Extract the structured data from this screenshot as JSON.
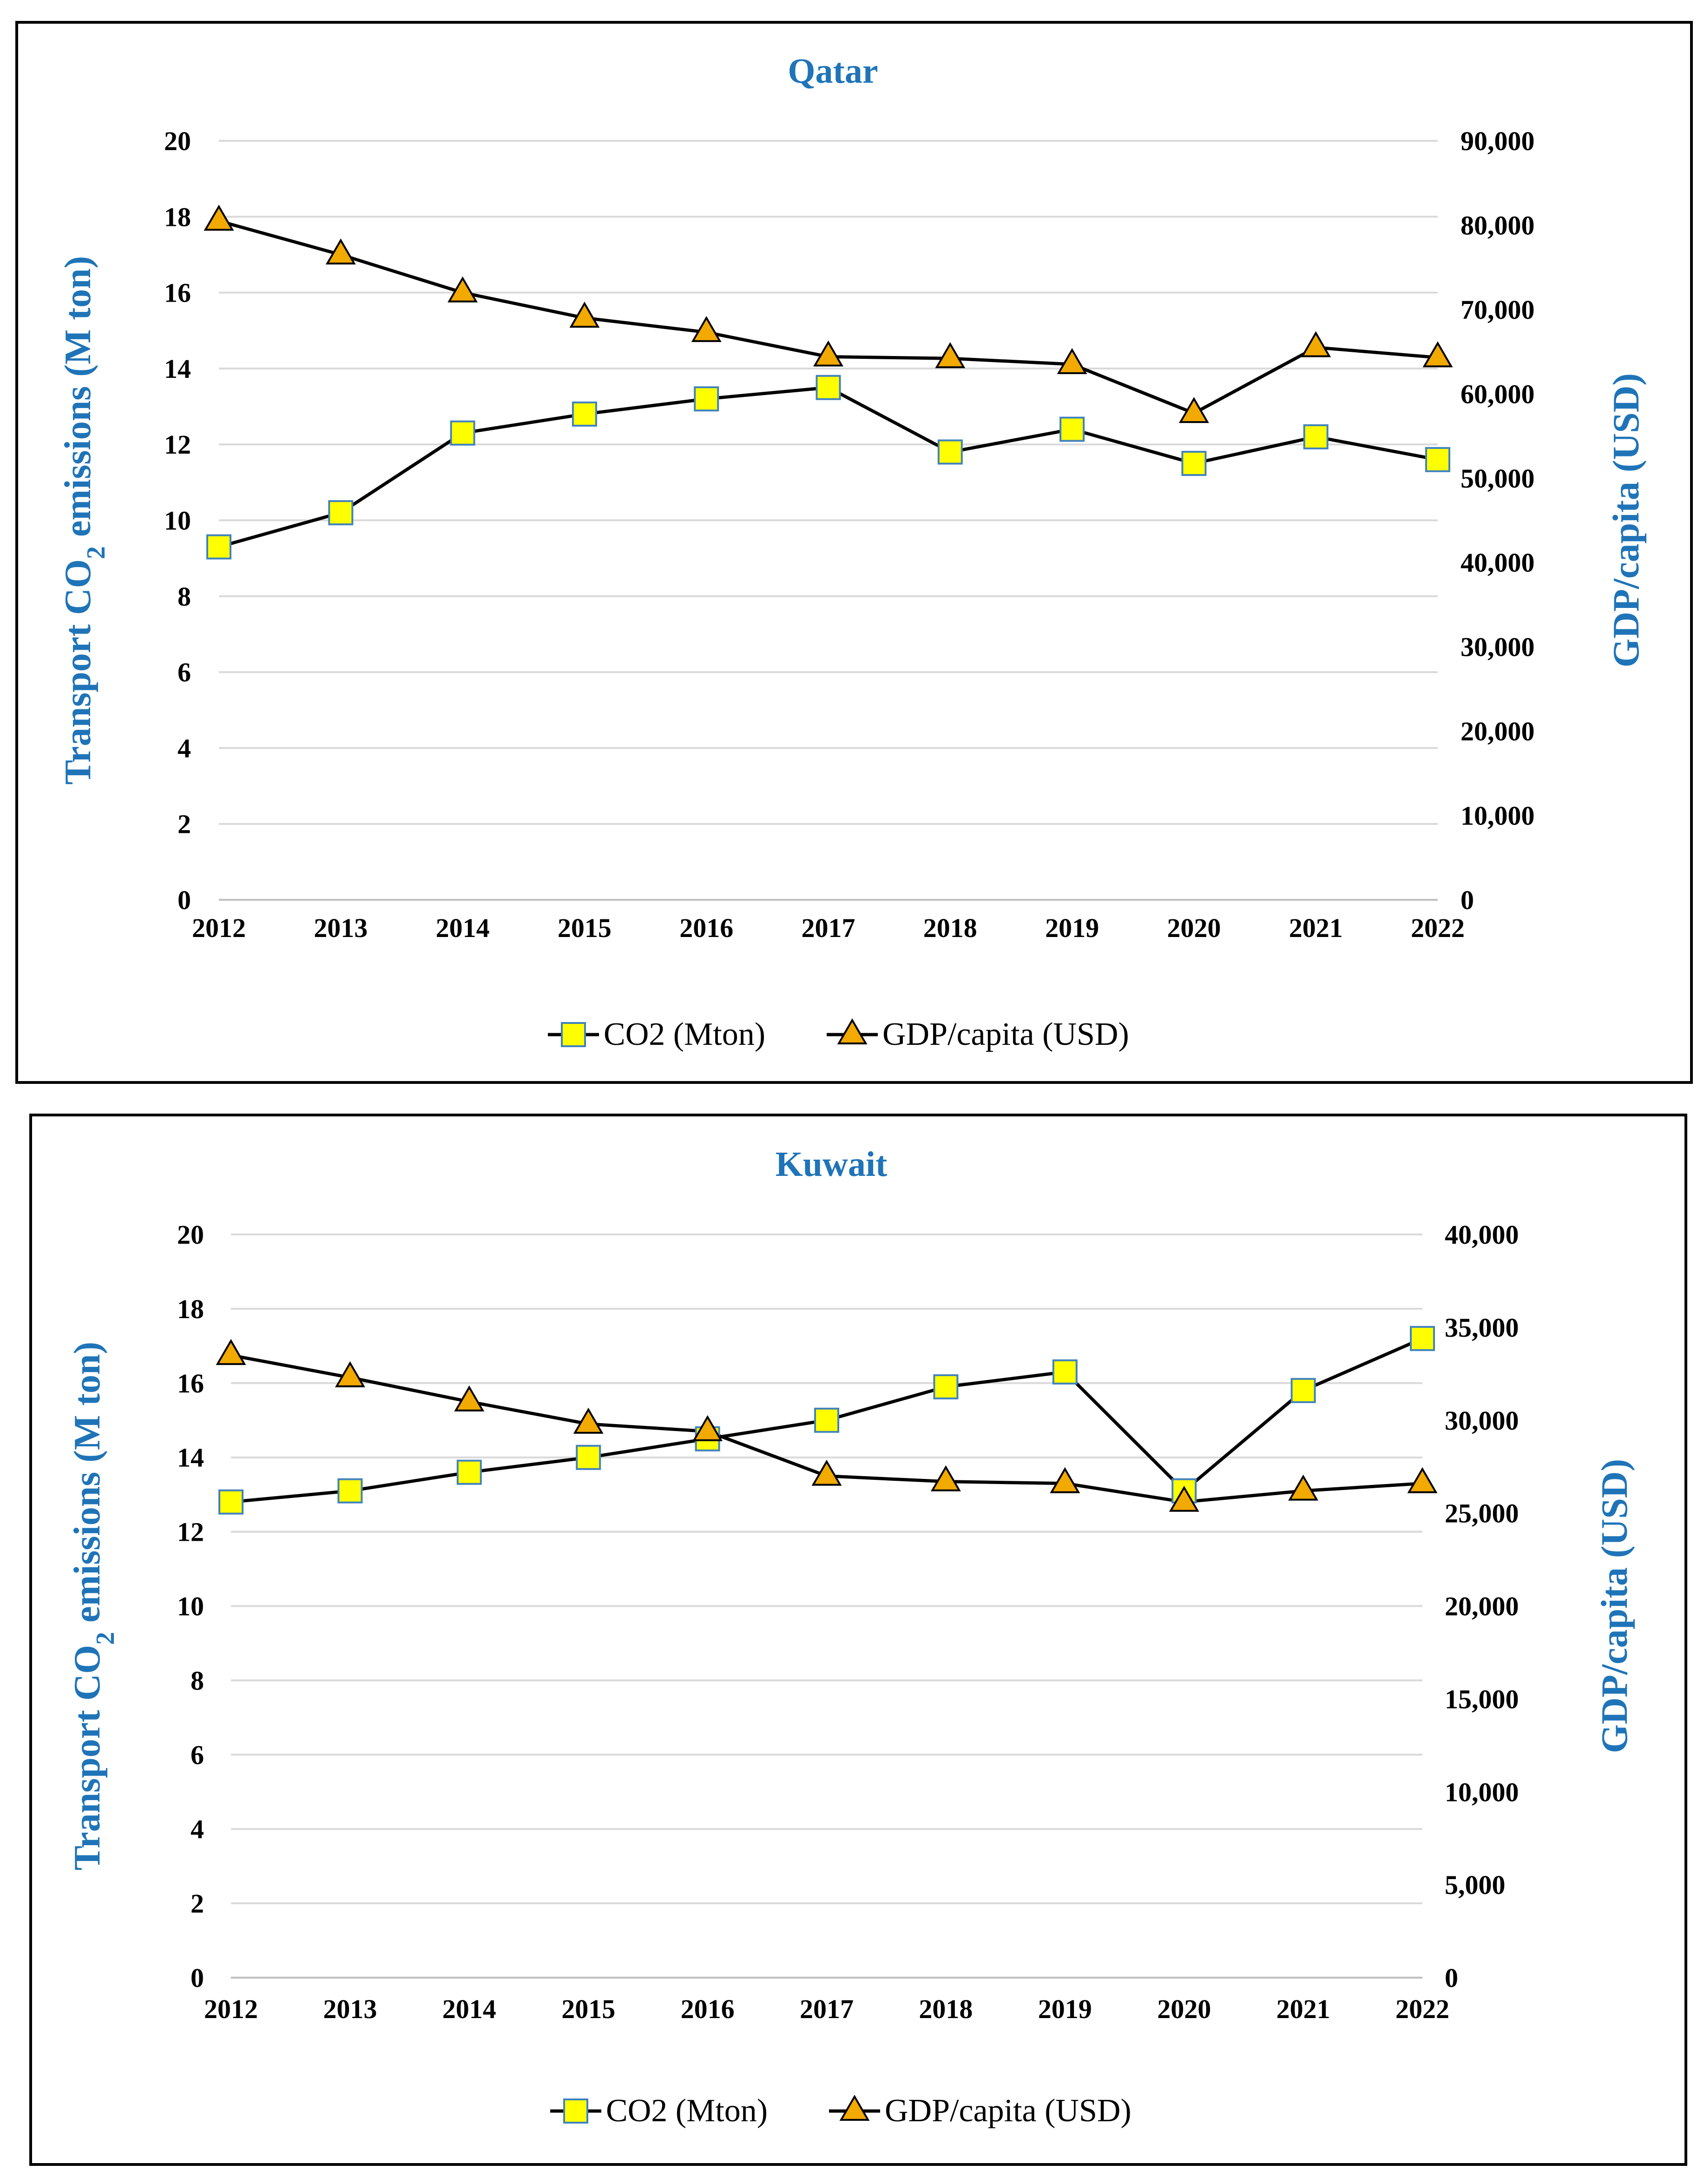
{
  "colors": {
    "title": "#1F74B8",
    "axis_title": "#1F74B8",
    "grid": "#D9D9D9",
    "line": "#000000",
    "co2_marker_fill": "#FFFF00",
    "co2_marker_stroke": "#3F82BE",
    "gdp_marker_fill": "#F2A900",
    "gdp_marker_stroke": "#000000"
  },
  "chart_data": [
    {
      "type": "line",
      "title": "Qatar",
      "xlabel": "",
      "ylabel_left": "Transport CO2 emissions (M ton)",
      "ylabel_left_prefix": "Transport CO",
      "ylabel_left_subscript": "2",
      "ylabel_left_suffix": " emissions (M ton)",
      "ylabel_right": "GDP/capita (USD)",
      "categories": [
        "2012",
        "2013",
        "2014",
        "2015",
        "2016",
        "2017",
        "2018",
        "2019",
        "2020",
        "2021",
        "2022"
      ],
      "y_left_ticks": [
        "0",
        "2",
        "4",
        "6",
        "8",
        "10",
        "12",
        "14",
        "16",
        "18",
        "20"
      ],
      "y_right_ticks": [
        "0",
        "10,000",
        "20,000",
        "30,000",
        "40,000",
        "50,000",
        "60,000",
        "70,000",
        "80,000",
        "90,000"
      ],
      "ylim_left": [
        0,
        20
      ],
      "ylim_right": [
        0,
        90000
      ],
      "grid": true,
      "legend_position": "bottom-center",
      "series": [
        {
          "name": "CO2 (Mton)",
          "axis": "left",
          "marker": "square",
          "values": [
            9.3,
            10.2,
            12.3,
            12.8,
            13.2,
            13.5,
            11.8,
            12.4,
            11.5,
            12.2,
            11.6
          ]
        },
        {
          "name": "GDP/capita (USD)",
          "axis": "right",
          "marker": "triangle",
          "values": [
            80500,
            76500,
            72000,
            69000,
            67300,
            64400,
            64200,
            63500,
            57700,
            65500,
            64300
          ]
        }
      ]
    },
    {
      "type": "line",
      "title": "Kuwait",
      "xlabel": "",
      "ylabel_left": "Transport CO2 emissions (M ton)",
      "ylabel_left_prefix": "Transport CO",
      "ylabel_left_subscript": "2",
      "ylabel_left_suffix": " emissions (M ton)",
      "ylabel_right": "GDP/capita (USD)",
      "categories": [
        "2012",
        "2013",
        "2014",
        "2015",
        "2016",
        "2017",
        "2018",
        "2019",
        "2020",
        "2021",
        "2022"
      ],
      "y_left_ticks": [
        "0",
        "2",
        "4",
        "6",
        "8",
        "10",
        "12",
        "14",
        "16",
        "18",
        "20"
      ],
      "y_right_ticks": [
        "0",
        "5,000",
        "10,000",
        "15,000",
        "20,000",
        "25,000",
        "30,000",
        "35,000",
        "40,000"
      ],
      "ylim_left": [
        0,
        20
      ],
      "ylim_right": [
        0,
        40000
      ],
      "grid": true,
      "legend_position": "bottom-center",
      "series": [
        {
          "name": "CO2 (Mton)",
          "axis": "left",
          "marker": "square",
          "values": [
            12.8,
            13.1,
            13.6,
            14.0,
            14.5,
            15.0,
            15.9,
            16.3,
            13.1,
            15.8,
            17.2
          ]
        },
        {
          "name": "GDP/capita (USD)",
          "axis": "right",
          "marker": "triangle",
          "values": [
            33500,
            32300,
            31000,
            29800,
            29400,
            27000,
            26700,
            26600,
            25600,
            26200,
            26600
          ]
        }
      ]
    }
  ]
}
